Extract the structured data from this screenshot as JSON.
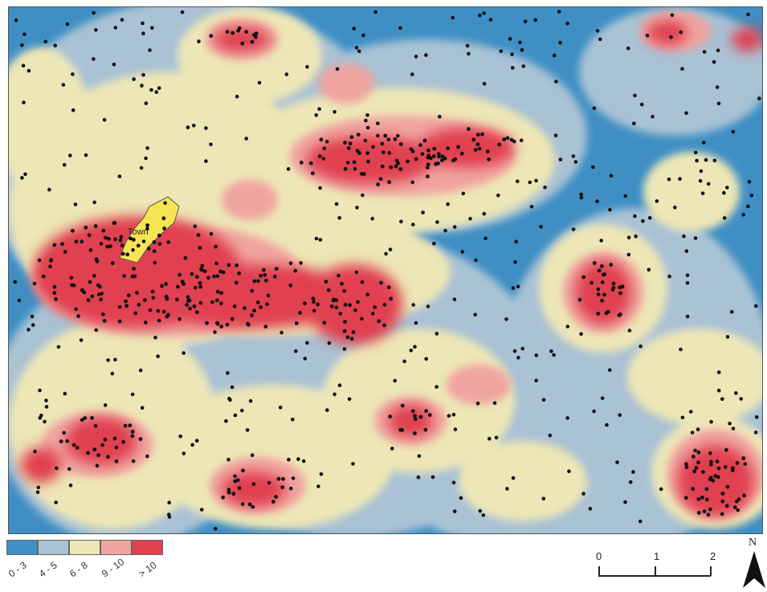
{
  "map": {
    "place_label": "Town",
    "colors": {
      "class_0_3": "#3f8fc4",
      "class_4_5": "#a9c2d4",
      "class_6_8": "#ede6b6",
      "class_9_10": "#f0a5a0",
      "class_gt10": "#e0414f",
      "town_fill": "#f6e552",
      "points": "#111111"
    }
  },
  "legend": {
    "classes": [
      {
        "label": "0 - 3",
        "color": "#3f8fc4"
      },
      {
        "label": "4 - 5",
        "color": "#a9c2d4"
      },
      {
        "label": "6 - 8",
        "color": "#ede6b6"
      },
      {
        "label": "9 - 10",
        "color": "#f0a5a0"
      },
      {
        "label": "> 10",
        "color": "#e0414f"
      }
    ]
  },
  "scalebar": {
    "labels": [
      "0",
      "1",
      "2"
    ]
  },
  "north_arrow": {
    "letter": "N",
    "icon": "north-arrow-icon"
  }
}
